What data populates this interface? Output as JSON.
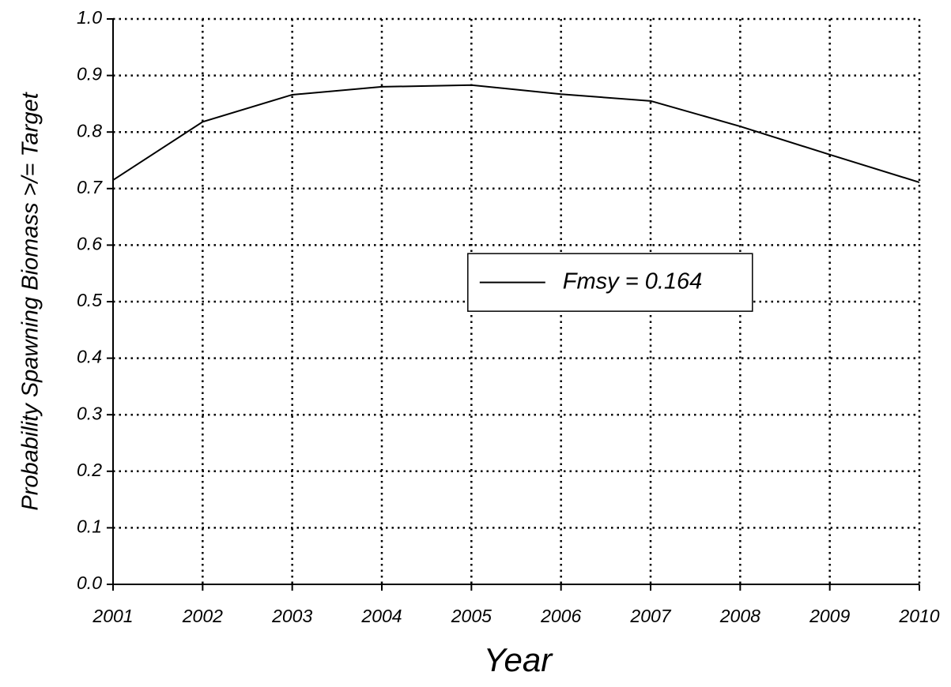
{
  "chart_data": {
    "type": "line",
    "xlabel": "Year",
    "ylabel": "Probability Spawning Biomass >/= Target",
    "x": [
      2001,
      2002,
      2003,
      2004,
      2005,
      2006,
      2007,
      2008,
      2009,
      2010
    ],
    "series": [
      {
        "name": "Fmsy = 0.164",
        "color": "#000000",
        "values": [
          0.715,
          0.818,
          0.866,
          0.88,
          0.883,
          0.867,
          0.855,
          0.81,
          0.76,
          0.711
        ]
      }
    ],
    "xlim": [
      2001,
      2010
    ],
    "xticks": [
      2001,
      2002,
      2003,
      2004,
      2005,
      2006,
      2007,
      2008,
      2009,
      2010
    ],
    "ylim": [
      0,
      1
    ],
    "yticks": [
      {
        "value": 0,
        "label": "0.0"
      },
      0.1,
      0.2,
      0.3,
      0.4,
      0.5,
      0.6,
      0.7,
      0.8,
      0.9,
      {
        "value": 1,
        "label": "1.0"
      }
    ],
    "grid": true,
    "legend": "center-right"
  }
}
